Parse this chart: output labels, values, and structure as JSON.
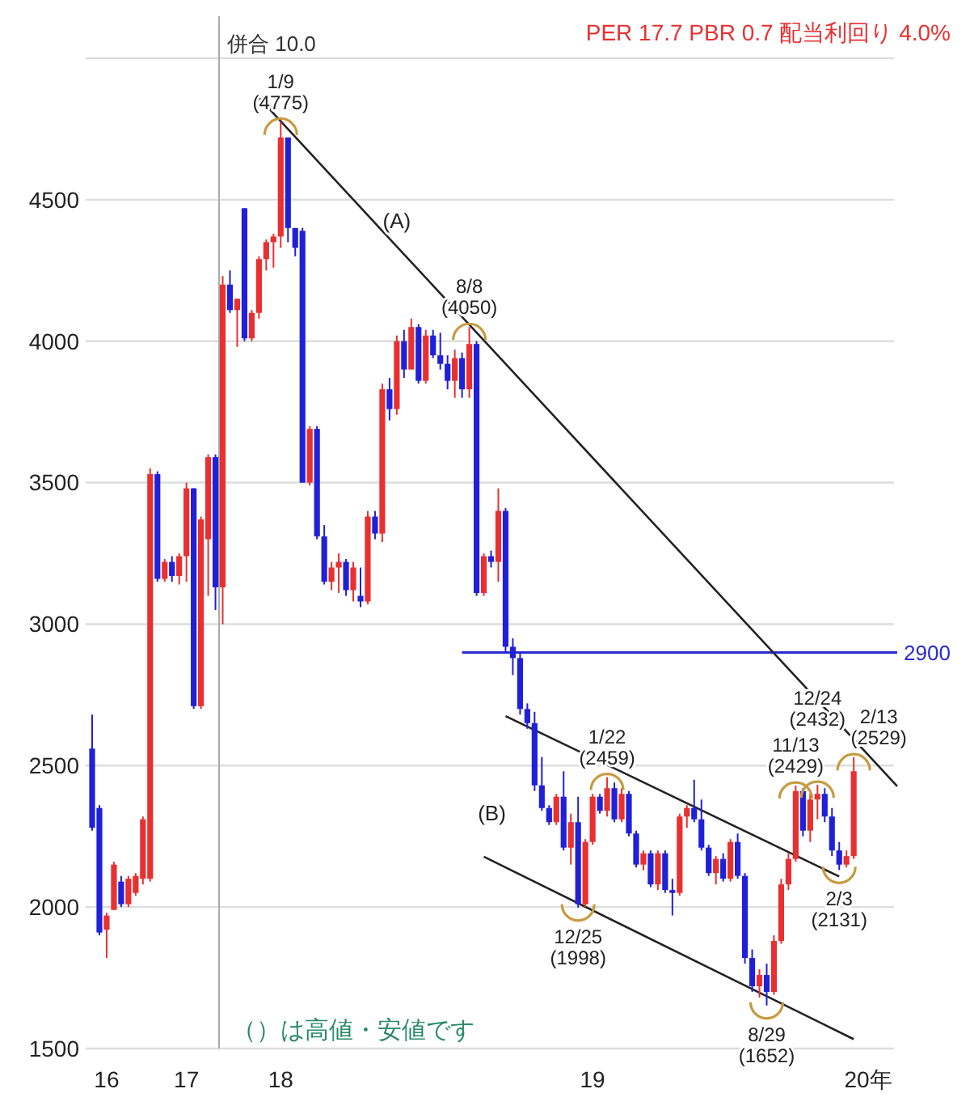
{
  "chart_data": {
    "type": "candlestick",
    "title": "PER 17.7 PBR 0.7 配当利回り 4.0%",
    "categories": [
      null,
      null,
      "16",
      null,
      null,
      null,
      null,
      null,
      null,
      null,
      null,
      null,
      null,
      "17",
      null,
      null,
      null,
      null,
      null,
      null,
      null,
      null,
      null,
      null,
      null,
      null,
      "18",
      null,
      null,
      null,
      null,
      null,
      null,
      null,
      null,
      null,
      null,
      null,
      null,
      null,
      null,
      null,
      null,
      null,
      null,
      null,
      null,
      null,
      null,
      null,
      null,
      null,
      null,
      null,
      null,
      null,
      null,
      null,
      null,
      null,
      null,
      null,
      null,
      null,
      null,
      null,
      null,
      null,
      null,
      "19",
      null,
      null,
      null,
      null,
      null,
      null,
      null,
      null,
      null,
      null,
      null,
      null,
      null,
      null,
      null,
      null,
      null,
      null,
      null,
      null,
      null,
      null,
      null,
      null,
      null,
      null,
      null,
      null,
      null,
      null,
      null,
      null,
      null,
      null,
      null,
      null,
      null,
      "20年",
      null,
      null,
      null,
      null
    ],
    "ohlc": [
      [
        2560,
        2680,
        2270,
        2280
      ],
      [
        2350,
        2360,
        1900,
        1910
      ],
      [
        1920,
        1980,
        1820,
        1970
      ],
      [
        1990,
        2160,
        1990,
        2150
      ],
      [
        2090,
        2110,
        2000,
        2010
      ],
      [
        2010,
        2110,
        2000,
        2100
      ],
      [
        2050,
        2120,
        2040,
        2110
      ],
      [
        2100,
        2320,
        2080,
        2310
      ],
      [
        2100,
        3550,
        2090,
        3530
      ],
      [
        3530,
        3540,
        3150,
        3160
      ],
      [
        3160,
        3230,
        3150,
        3220
      ],
      [
        3220,
        3240,
        3150,
        3170
      ],
      [
        3170,
        3250,
        3140,
        3240
      ],
      [
        3240,
        3500,
        3150,
        3480
      ],
      [
        3480,
        3480,
        2700,
        2710
      ],
      [
        2710,
        3380,
        2700,
        3370
      ],
      [
        3300,
        3600,
        3100,
        3590
      ],
      [
        3590,
        3600,
        3050,
        3130
      ],
      [
        3130,
        4230,
        3000,
        4200
      ],
      [
        4200,
        4250,
        4100,
        4110
      ],
      [
        4110,
        4150,
        3980,
        4150
      ],
      [
        4470,
        4470,
        4000,
        4010
      ],
      [
        4010,
        4110,
        4000,
        4100
      ],
      [
        4100,
        4300,
        4080,
        4290
      ],
      [
        4290,
        4360,
        4250,
        4350
      ],
      [
        4350,
        4380,
        4260,
        4370
      ],
      [
        4370,
        4775,
        4330,
        4720
      ],
      [
        4720,
        4720,
        4350,
        4400
      ],
      [
        4400,
        4400,
        4300,
        4330
      ],
      [
        4390,
        4400,
        3500,
        3500
      ],
      [
        3500,
        3700,
        3490,
        3690
      ],
      [
        3690,
        3700,
        3300,
        3310
      ],
      [
        3310,
        3350,
        3140,
        3150
      ],
      [
        3150,
        3220,
        3120,
        3200
      ],
      [
        3200,
        3250,
        3110,
        3220
      ],
      [
        3220,
        3230,
        3100,
        3120
      ],
      [
        3120,
        3220,
        3080,
        3200
      ],
      [
        3100,
        3200,
        3060,
        3080
      ],
      [
        3080,
        3400,
        3070,
        3380
      ],
      [
        3380,
        3400,
        3300,
        3320
      ],
      [
        3320,
        3850,
        3290,
        3830
      ],
      [
        3830,
        3870,
        3720,
        3760
      ],
      [
        3760,
        4020,
        3740,
        4000
      ],
      [
        4000,
        4040,
        3870,
        3900
      ],
      [
        3900,
        4080,
        3900,
        4050
      ],
      [
        4050,
        4060,
        3850,
        3860
      ],
      [
        3860,
        4040,
        3850,
        4020
      ],
      [
        4020,
        4040,
        3940,
        3950
      ],
      [
        3950,
        4030,
        3900,
        3920
      ],
      [
        3920,
        3950,
        3830,
        3860
      ],
      [
        3860,
        3970,
        3800,
        3940
      ],
      [
        3940,
        3960,
        3800,
        3830
      ],
      [
        3830,
        4050,
        3800,
        3990
      ],
      [
        3990,
        4000,
        3100,
        3110
      ],
      [
        3110,
        3250,
        3100,
        3240
      ],
      [
        3240,
        3260,
        3200,
        3220
      ],
      [
        3220,
        3480,
        3150,
        3400
      ],
      [
        3400,
        3410,
        2900,
        2920
      ],
      [
        2920,
        2950,
        2820,
        2880
      ],
      [
        2880,
        2900,
        2680,
        2700
      ],
      [
        2700,
        2720,
        2630,
        2650
      ],
      [
        2650,
        2690,
        2410,
        2430
      ],
      [
        2430,
        2530,
        2340,
        2350
      ],
      [
        2350,
        2360,
        2290,
        2300
      ],
      [
        2300,
        2400,
        2290,
        2390
      ],
      [
        2390,
        2480,
        2200,
        2210
      ],
      [
        2210,
        2330,
        2150,
        2300
      ],
      [
        2300,
        2390,
        1998,
        2010
      ],
      [
        2010,
        2240,
        2000,
        2230
      ],
      [
        2230,
        2400,
        2220,
        2390
      ],
      [
        2390,
        2400,
        2330,
        2340
      ],
      [
        2340,
        2459,
        2320,
        2420
      ],
      [
        2420,
        2440,
        2300,
        2310
      ],
      [
        2310,
        2420,
        2300,
        2400
      ],
      [
        2400,
        2410,
        2250,
        2260
      ],
      [
        2260,
        2270,
        2140,
        2150
      ],
      [
        2150,
        2200,
        2130,
        2190
      ],
      [
        2190,
        2200,
        2070,
        2080
      ],
      [
        2080,
        2200,
        2060,
        2190
      ],
      [
        2190,
        2200,
        2050,
        2060
      ],
      [
        2060,
        2100,
        1970,
        2050
      ],
      [
        2050,
        2330,
        2040,
        2320
      ],
      [
        2320,
        2360,
        2280,
        2350
      ],
      [
        2350,
        2450,
        2300,
        2310
      ],
      [
        2310,
        2380,
        2200,
        2210
      ],
      [
        2210,
        2220,
        2110,
        2120
      ],
      [
        2120,
        2180,
        2080,
        2170
      ],
      [
        2170,
        2190,
        2090,
        2100
      ],
      [
        2100,
        2240,
        2090,
        2230
      ],
      [
        2230,
        2260,
        2100,
        2110
      ],
      [
        2110,
        2120,
        1800,
        1820
      ],
      [
        1820,
        1850,
        1700,
        1720
      ],
      [
        1720,
        1780,
        1680,
        1760
      ],
      [
        1760,
        1800,
        1652,
        1700
      ],
      [
        1700,
        1900,
        1690,
        1880
      ],
      [
        1880,
        2100,
        1870,
        2080
      ],
      [
        2080,
        2190,
        2060,
        2170
      ],
      [
        2170,
        2429,
        2160,
        2410
      ],
      [
        2410,
        2420,
        2250,
        2270
      ],
      [
        2270,
        2400,
        2230,
        2380
      ],
      [
        2380,
        2432,
        2310,
        2400
      ],
      [
        2400,
        2420,
        2300,
        2320
      ],
      [
        2320,
        2350,
        2180,
        2200
      ],
      [
        2200,
        2230,
        2131,
        2150
      ],
      [
        2150,
        2200,
        2140,
        2180
      ],
      [
        2180,
        2529,
        2170,
        2480
      ],
      null,
      null,
      null,
      null,
      null,
      null
    ],
    "colors": [
      "#2020d8",
      "#2020d8",
      "#e83030",
      "#e83030",
      "#2020d8",
      "#e83030",
      "#e83030",
      "#e83030",
      "#e83030",
      "#2020d8",
      "#e83030",
      "#2020d8",
      "#e83030",
      "#e83030",
      "#2020d8",
      "#e83030",
      "#e83030",
      "#2020d8",
      "#e83030",
      "#2020d8",
      "#e83030",
      "#2020d8",
      "#e83030",
      "#e83030",
      "#e83030",
      "#e83030",
      "#e83030",
      "#2020d8",
      "#2020d8",
      "#2020d8",
      "#e83030",
      "#2020d8",
      "#2020d8",
      "#e83030",
      "#e83030",
      "#2020d8",
      "#e83030",
      "#2020d8",
      "#e83030",
      "#2020d8",
      "#e83030",
      "#2020d8",
      "#e83030",
      "#2020d8",
      "#e83030",
      "#2020d8",
      "#e83030",
      "#2020d8",
      "#2020d8",
      "#2020d8",
      "#e83030",
      "#2020d8",
      "#e83030",
      "#2020d8",
      "#e83030",
      "#2020d8",
      "#e83030",
      "#2020d8",
      "#2020d8",
      "#2020d8",
      "#2020d8",
      "#2020d8",
      "#2020d8",
      "#2020d8",
      "#e83030",
      "#2020d8",
      "#e83030",
      "#2020d8",
      "#e83030",
      "#e83030",
      "#2020d8",
      "#e83030",
      "#2020d8",
      "#e83030",
      "#2020d8",
      "#2020d8",
      "#e83030",
      "#2020d8",
      "#e83030",
      "#2020d8",
      "#2020d8",
      "#e83030",
      "#e83030",
      "#2020d8",
      "#2020d8",
      "#2020d8",
      "#e83030",
      "#2020d8",
      "#e83030",
      "#2020d8",
      "#2020d8",
      "#2020d8",
      "#e83030",
      "#2020d8",
      "#e83030",
      "#e83030",
      "#e83030",
      "#e83030",
      "#2020d8",
      "#e83030",
      "#e83030",
      "#2020d8",
      "#2020d8",
      "#2020d8",
      "#e83030",
      "#e83030",
      null,
      null,
      null,
      null,
      null,
      null
    ],
    "series": [
      {
        "type": "line",
        "color": "#222222",
        "values": [
          null,
          null,
          null,
          null,
          null,
          null,
          null,
          null,
          null,
          null,
          null,
          null,
          null,
          null,
          null,
          null,
          null,
          null,
          null,
          null,
          null,
          null,
          null,
          4860,
          null,
          null,
          null,
          null,
          null,
          null,
          null,
          null,
          null,
          null,
          null,
          null,
          null,
          null,
          null,
          null,
          null,
          null,
          null,
          null,
          null,
          null,
          null,
          null,
          null,
          null,
          null,
          null,
          null,
          null,
          null,
          null,
          null,
          null,
          null,
          null,
          null,
          null,
          null,
          null,
          null,
          null,
          null,
          null,
          null,
          null,
          null,
          null,
          null,
          null,
          null,
          null,
          null,
          null,
          null,
          null,
          null,
          null,
          null,
          null,
          null,
          null,
          null,
          null,
          null,
          null,
          null,
          null,
          null,
          null,
          null,
          null,
          null,
          null,
          null,
          null,
          null,
          null,
          null,
          null,
          null,
          null,
          null,
          null,
          null,
          null,
          null,
          2427
        ]
      },
      {
        "type": "line",
        "color": "#222222",
        "values": [
          null,
          null,
          null,
          null,
          null,
          null,
          null,
          null,
          null,
          null,
          null,
          null,
          null,
          null,
          null,
          null,
          null,
          null,
          null,
          null,
          null,
          null,
          null,
          null,
          null,
          null,
          null,
          null,
          null,
          null,
          null,
          null,
          null,
          null,
          null,
          null,
          null,
          null,
          null,
          null,
          null,
          null,
          null,
          null,
          null,
          null,
          null,
          null,
          null,
          null,
          null,
          null,
          null,
          null,
          null,
          null,
          null,
          2675,
          null,
          null,
          null,
          null,
          null,
          null,
          null,
          null,
          null,
          null,
          null,
          null,
          null,
          null,
          null,
          null,
          null,
          null,
          null,
          null,
          null,
          null,
          null,
          null,
          null,
          null,
          null,
          null,
          null,
          null,
          null,
          null,
          null,
          null,
          null,
          null,
          null,
          null,
          null,
          null,
          null,
          null,
          null,
          null,
          null,
          2108,
          null,
          null,
          null,
          null,
          null,
          null,
          null,
          null
        ]
      },
      {
        "type": "line",
        "color": "#222222",
        "values": [
          null,
          null,
          null,
          null,
          null,
          null,
          null,
          null,
          null,
          null,
          null,
          null,
          null,
          null,
          null,
          null,
          null,
          null,
          null,
          null,
          null,
          null,
          null,
          null,
          null,
          null,
          null,
          null,
          null,
          null,
          null,
          null,
          null,
          null,
          null,
          null,
          null,
          null,
          null,
          null,
          null,
          null,
          null,
          null,
          null,
          null,
          null,
          null,
          null,
          null,
          null,
          null,
          null,
          null,
          2178,
          null,
          null,
          null,
          null,
          null,
          null,
          null,
          null,
          null,
          null,
          null,
          null,
          null,
          null,
          null,
          null,
          null,
          null,
          null,
          null,
          null,
          null,
          null,
          null,
          null,
          null,
          null,
          null,
          null,
          null,
          null,
          null,
          null,
          null,
          null,
          null,
          null,
          null,
          null,
          null,
          null,
          null,
          null,
          null,
          null,
          null,
          null,
          null,
          null,
          null,
          1533,
          null,
          null,
          null,
          null,
          null,
          null
        ]
      }
    ],
    "ylim": [
      1500,
      5000
    ],
    "yticks": [
      1500,
      2000,
      2500,
      3000,
      3500,
      4000,
      4500
    ],
    "grid": "y",
    "ref_lines": [
      {
        "axis": "y",
        "value": 2900,
        "label": "2900",
        "color": "#2a2ad0"
      }
    ],
    "annotations": [
      {
        "text": "1/9\n(4775)",
        "y": 4775
      },
      {
        "text": "8/8\n(4050)",
        "y": 4050
      },
      {
        "text": "12/25\n(1998)",
        "y": 1998
      },
      {
        "text": "1/22\n(2459)",
        "y": 2459
      },
      {
        "text": "8/29\n(1652)",
        "y": 1652
      },
      {
        "text": "11/13\n(2429)",
        "y": 2429
      },
      {
        "text": "12/24\n(2432)",
        "y": 2432
      },
      {
        "text": "2/3\n(2131)",
        "y": 2131
      },
      {
        "text": "2/13\n(2529)",
        "y": 2529
      },
      "併合 10.0",
      "(A)",
      "(B)",
      "（）は高値・安値です"
    ]
  }
}
